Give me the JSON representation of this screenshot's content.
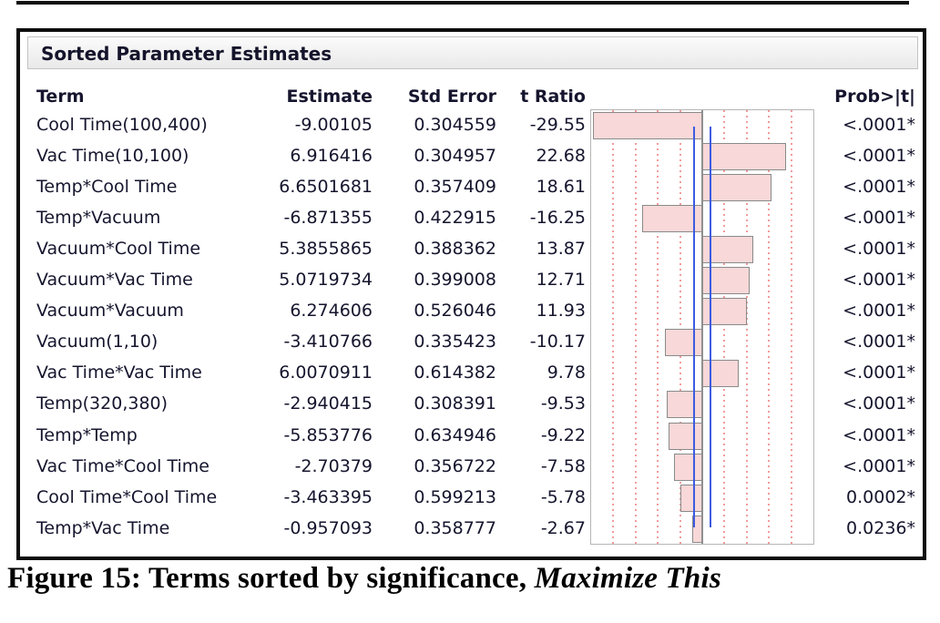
{
  "panel": {
    "title": "Sorted Parameter Estimates"
  },
  "table": {
    "headers": {
      "term": "Term",
      "estimate": "Estimate",
      "std_error": "Std Error",
      "t_ratio": "t Ratio",
      "prob": "Prob>|t|"
    },
    "rows": [
      {
        "term": "Cool Time(100,400)",
        "estimate": "-9.00105",
        "std_error": "0.304559",
        "t_ratio": "-29.55",
        "prob": "<.0001*"
      },
      {
        "term": "Vac Time(10,100)",
        "estimate": "6.916416",
        "std_error": "0.304957",
        "t_ratio": "22.68",
        "prob": "<.0001*"
      },
      {
        "term": "Temp*Cool Time",
        "estimate": "6.6501681",
        "std_error": "0.357409",
        "t_ratio": "18.61",
        "prob": "<.0001*"
      },
      {
        "term": "Temp*Vacuum",
        "estimate": "-6.871355",
        "std_error": "0.422915",
        "t_ratio": "-16.25",
        "prob": "<.0001*"
      },
      {
        "term": "Vacuum*Cool Time",
        "estimate": "5.3855865",
        "std_error": "0.388362",
        "t_ratio": "13.87",
        "prob": "<.0001*"
      },
      {
        "term": "Vacuum*Vac Time",
        "estimate": "5.0719734",
        "std_error": "0.399008",
        "t_ratio": "12.71",
        "prob": "<.0001*"
      },
      {
        "term": "Vacuum*Vacuum",
        "estimate": "6.274606",
        "std_error": "0.526046",
        "t_ratio": "11.93",
        "prob": "<.0001*"
      },
      {
        "term": "Vacuum(1,10)",
        "estimate": "-3.410766",
        "std_error": "0.335423",
        "t_ratio": "-10.17",
        "prob": "<.0001*"
      },
      {
        "term": "Vac Time*Vac Time",
        "estimate": "6.0070911",
        "std_error": "0.614382",
        "t_ratio": "9.78",
        "prob": "<.0001*"
      },
      {
        "term": "Temp(320,380)",
        "estimate": "-2.940415",
        "std_error": "0.308391",
        "t_ratio": "-9.53",
        "prob": "<.0001*"
      },
      {
        "term": "Temp*Temp",
        "estimate": "-5.853776",
        "std_error": "0.634946",
        "t_ratio": "-9.22",
        "prob": "<.0001*"
      },
      {
        "term": "Vac Time*Cool Time",
        "estimate": "-2.70379",
        "std_error": "0.356722",
        "t_ratio": "-7.58",
        "prob": "<.0001*"
      },
      {
        "term": "Cool Time*Cool Time",
        "estimate": "-3.463395",
        "std_error": "0.599213",
        "t_ratio": "-5.78",
        "prob": "0.0002*"
      },
      {
        "term": "Temp*Vac Time",
        "estimate": "-0.957093",
        "std_error": "0.358777",
        "t_ratio": "-2.67",
        "prob": "0.0236*"
      }
    ]
  },
  "chart_data": {
    "type": "bar",
    "orientation": "horizontal",
    "title": "t Ratio bar plot (Sorted Parameter Estimates)",
    "categories": [
      "Cool Time(100,400)",
      "Vac Time(10,100)",
      "Temp*Cool Time",
      "Temp*Vacuum",
      "Vacuum*Cool Time",
      "Vacuum*Vac Time",
      "Vacuum*Vacuum",
      "Vacuum(1,10)",
      "Vac Time*Vac Time",
      "Temp(320,380)",
      "Temp*Temp",
      "Vac Time*Cool Time",
      "Cool Time*Cool Time",
      "Temp*Vac Time"
    ],
    "values": [
      -29.55,
      22.68,
      18.61,
      -16.25,
      13.87,
      12.71,
      11.93,
      -10.17,
      9.78,
      -9.53,
      -9.22,
      -7.58,
      -5.78,
      -2.67
    ],
    "xlabel": "t Ratio",
    "ylabel": "Term",
    "xlim": [
      -30,
      30
    ],
    "gridline_positions": [
      -24,
      -18,
      -12,
      -6,
      6,
      12,
      18,
      24
    ],
    "gridline_style": "dotted",
    "zero_line": 0,
    "reference_lines": [
      -2.28,
      2.28
    ],
    "legend": "none"
  },
  "caption": {
    "text": "Figure 15: Terms sorted by significance, ",
    "emphasis": "Maximize This"
  },
  "colors": {
    "bar_fill": "#f8d8d8",
    "bar_border": "#8a8a8a",
    "gridline": "#f29b9b",
    "reference_line": "#3d5be0",
    "zero_line": "#8f8f8f",
    "panel_band": "#efefef",
    "text": "#15152e",
    "frame_border": "#0d0d0d"
  }
}
